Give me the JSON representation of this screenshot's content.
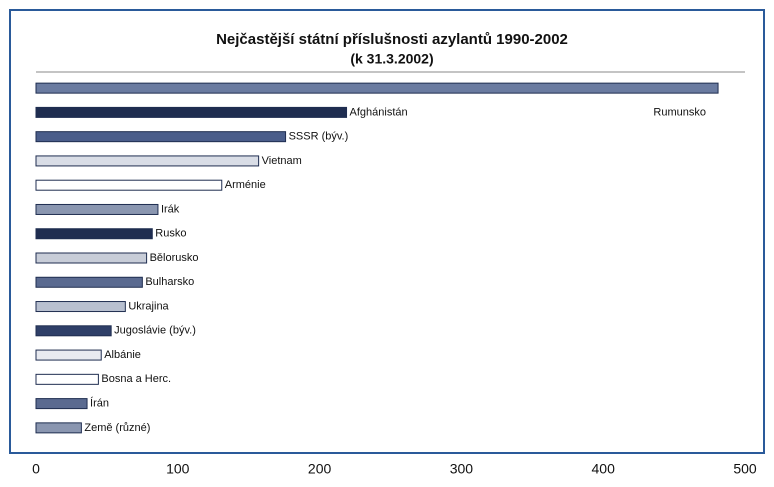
{
  "chart_data": {
    "type": "bar",
    "orientation": "horizontal",
    "title": "Nejčastější státní příslušnosti azylantů 1990-2002",
    "subtitle": "(k 31.3.2002)",
    "categories": [
      "Rumunsko",
      "Afghánistán",
      "SSSR (býv.)",
      "Vietnam",
      "Arménie",
      "Irák",
      "Rusko",
      "Bělorusko",
      "Bulharsko",
      "Ukrajina",
      "Jugoslávie (býv.)",
      "Albánie",
      "Bosna a Herc.",
      "Írán",
      "Země (různé)"
    ],
    "values": [
      481,
      219,
      176,
      157,
      131,
      86,
      82,
      78,
      75,
      63,
      53,
      46,
      44,
      36,
      32
    ],
    "colors": [
      "#6a7ba0",
      "#1f2d50",
      "#4a5d8a",
      "#d9dde6",
      "#ffffff",
      "#8a96b0",
      "#1f2d50",
      "#c8cdd8",
      "#5a6a90",
      "#b8c0d0",
      "#2f3f68",
      "#e8eaf0",
      "#ffffff",
      "#5a6a90",
      "#8a96b0"
    ],
    "xlim": [
      0,
      500
    ],
    "xticks": [
      0,
      100,
      200,
      300,
      400,
      500
    ]
  }
}
